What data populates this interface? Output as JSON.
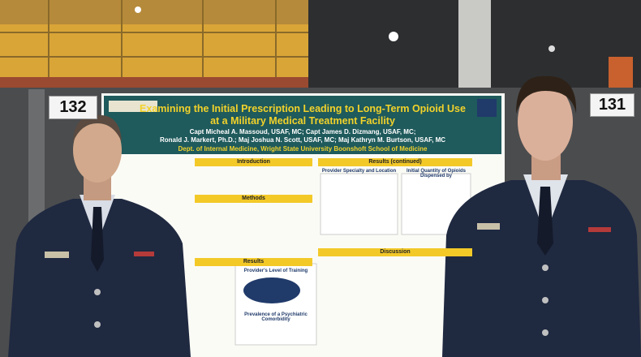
{
  "booths": {
    "left": "132",
    "right": "131"
  },
  "poster": {
    "title": [
      "Examining the Initial Prescription Leading to Long-Term Opioid Use",
      "at a Military Medical Treatment Facility"
    ],
    "authors": [
      "Capt Micheal A. Massoud, USAF, MC; Capt James D. Dizmang, USAF, MC;",
      "Ronald J. Markert, Ph.D.; Maj Joshua N. Scott, USAF, MC; Maj Kathryn M. Burtson, USAF, MC"
    ],
    "department": "Dept. of Internal Medicine, Wright State University Boonshoft School of Medicine",
    "sections": {
      "introduction": "Introduction",
      "methods": "Methods",
      "results": "Results",
      "results_continued": "Results (continued)",
      "discussion": "Discussion"
    },
    "charts": {
      "specialty": "Provider Specialty and Location",
      "quantity": "Initial Quantity of Opioids Dispensed by",
      "training": "Provider's Level of Training",
      "comorbidity": "Prevalence of a Psychiatric Comorbidity"
    }
  }
}
